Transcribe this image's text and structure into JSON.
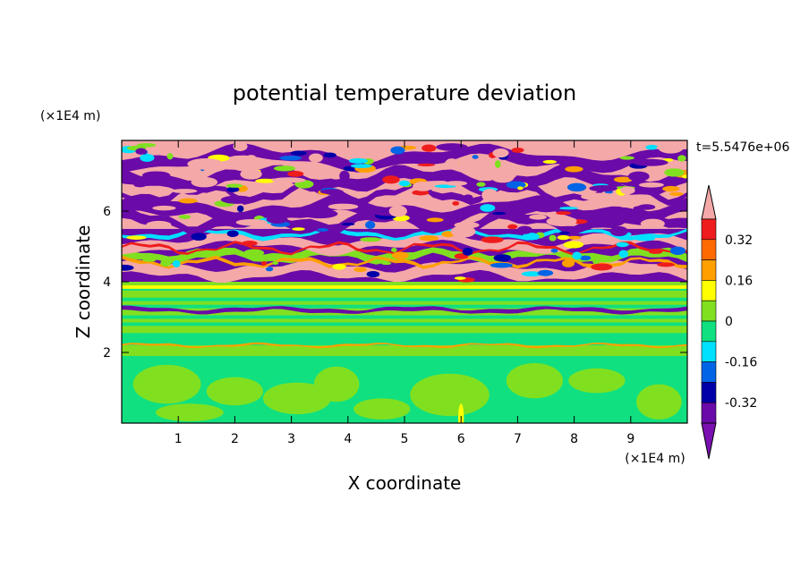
{
  "chart_data": {
    "type": "heatmap",
    "title": "potential temperature deviation",
    "xlabel": "X coordinate",
    "ylabel": "Z coordinate",
    "x_unit": "(×1E4 m)",
    "y_unit": "(×1E4 m)",
    "time_label": "t=5.5476e+06",
    "xlim": [
      0,
      10
    ],
    "ylim": [
      0,
      8
    ],
    "x_ticks": [
      1,
      2,
      3,
      4,
      5,
      6,
      7,
      8,
      9
    ],
    "y_ticks": [
      2,
      4,
      6
    ],
    "colorbar": {
      "levels": [
        -0.4,
        -0.32,
        -0.24,
        -0.16,
        -0.08,
        0,
        0.08,
        0.16,
        0.24,
        0.32,
        0.4
      ],
      "tick_labels": [
        "0.32",
        "0.16",
        "0",
        "-0.16",
        "-0.32"
      ],
      "tick_values": [
        0.32,
        0.16,
        0,
        -0.16,
        -0.32
      ],
      "colors_high_to_low": [
        "#f5a8a8",
        "#ee1c1c",
        "#ff6a00",
        "#ff9f00",
        "#ffff00",
        "#80e020",
        "#10e080",
        "#00e0ff",
        "#0064e6",
        "#0000a8",
        "#6a0aa8",
        "#7a10b0"
      ],
      "extend": "both"
    },
    "layers": [
      {
        "z_range": [
          0,
          2
        ],
        "dominant": [
          "#10e080",
          "#80e020"
        ],
        "description_level": "small +/- 0.08"
      },
      {
        "z_range": [
          2,
          4
        ],
        "dominant": [
          "#80e020",
          "#10e080"
        ],
        "description_level": "mixed near 0"
      },
      {
        "z_range": [
          4,
          5.5
        ],
        "dominant": [
          "#6a0aa8",
          "#f5a8a8"
        ],
        "description_level": "strong +/-"
      },
      {
        "z_range": [
          5.5,
          8
        ],
        "dominant": [
          "#f5a8a8",
          "#6a0aa8"
        ],
        "description_level": "saturated +/-"
      }
    ]
  }
}
